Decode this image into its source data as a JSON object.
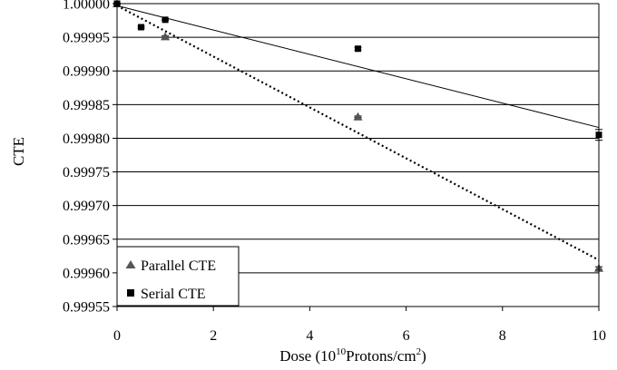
{
  "chart_data": {
    "type": "scatter",
    "title": "",
    "xlabel": {
      "main": "Dose (10",
      "sup": "10",
      "mid": "Protons/cm",
      "sup2": "2",
      "end": ")"
    },
    "ylabel": "CTE",
    "xlim": [
      0,
      10
    ],
    "ylim": [
      0.99955,
      1.0
    ],
    "x_ticks": [
      0,
      2,
      4,
      6,
      8,
      10
    ],
    "y_ticks": [
      0.99955,
      0.9996,
      0.99965,
      0.9997,
      0.99975,
      0.9998,
      0.99985,
      0.9999,
      0.99995,
      1.0
    ],
    "y_tick_labels": [
      "0.99955",
      "0.99960",
      "0.99965",
      "0.99970",
      "0.99975",
      "0.99980",
      "0.99985",
      "0.99990",
      "0.99995",
      "1.00000"
    ],
    "grid": "horizontal",
    "legend_position": "bottom-left",
    "series": [
      {
        "name": "Parallel CTE",
        "marker": "triangle",
        "color": "#555555",
        "points": [
          {
            "x": 0,
            "y": 1.0,
            "err": 5e-07
          },
          {
            "x": 1,
            "y": 0.999951,
            "err": 1e-06
          },
          {
            "x": 5,
            "y": 0.999832,
            "err": 1e-06
          },
          {
            "x": 10,
            "y": 0.999607,
            "err": 2e-06
          }
        ],
        "fit": {
          "x": [
            0,
            10
          ],
          "y": [
            0.999997,
            0.999619
          ],
          "style": "dotted"
        }
      },
      {
        "name": "Serial CTE",
        "marker": "square",
        "color": "#000000",
        "points": [
          {
            "x": 0,
            "y": 1.0,
            "err": 5e-07
          },
          {
            "x": 0.5,
            "y": 0.999965,
            "err": 1.5e-06
          },
          {
            "x": 1,
            "y": 0.999976,
            "err": 1e-06
          },
          {
            "x": 5,
            "y": 0.999933,
            "err": 2e-06
          },
          {
            "x": 10,
            "y": 0.999805,
            "err": 8e-06
          }
        ],
        "fit": {
          "x": [
            0,
            10
          ],
          "y": [
            0.999997,
            0.999816
          ],
          "style": "solid"
        }
      }
    ]
  }
}
